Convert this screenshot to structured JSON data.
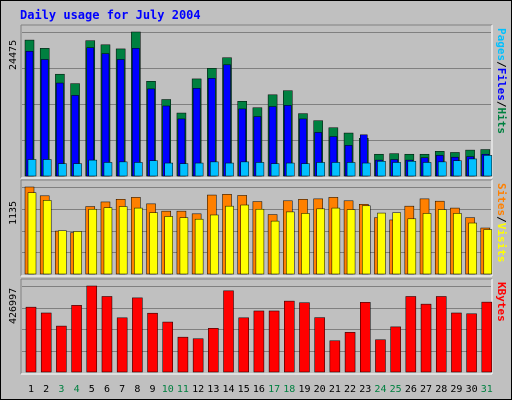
{
  "chart_data": [
    {
      "type": "bar",
      "title": "Daily usage for July 2004",
      "ylabel_parts": [
        {
          "text": "Pages",
          "color": "#00c0ff"
        },
        {
          "text": "/",
          "color": "#000000"
        },
        {
          "text": "Files",
          "color": "#0000ff"
        },
        {
          "text": "/",
          "color": "#000000"
        },
        {
          "text": "Hits",
          "color": "#008040"
        }
      ],
      "ymax_label": "24475",
      "ylim": [
        0,
        24475
      ],
      "categories": [
        "1",
        "2",
        "3",
        "4",
        "5",
        "6",
        "7",
        "8",
        "9",
        "10",
        "11",
        "12",
        "13",
        "14",
        "15",
        "16",
        "17",
        "18",
        "19",
        "20",
        "21",
        "22",
        "23",
        "24",
        "25",
        "26",
        "27",
        "28",
        "29",
        "30",
        "31"
      ],
      "weekend_days": [
        "3",
        "4",
        "10",
        "11",
        "17",
        "18",
        "24",
        "25",
        "31"
      ],
      "series": [
        {
          "name": "Hits",
          "color": "#008040",
          "values": [
            23100,
            21700,
            17300,
            15700,
            23000,
            22300,
            21600,
            24475,
            16100,
            13000,
            10700,
            16500,
            18300,
            20100,
            12700,
            11600,
            13800,
            14500,
            10600,
            9400,
            8200,
            7300,
            6400,
            3700,
            3800,
            3700,
            3700,
            4200,
            4000,
            4400,
            4500
          ]
        },
        {
          "name": "Files",
          "color": "#0000ff",
          "values": [
            21200,
            19800,
            15800,
            13700,
            21800,
            20800,
            19800,
            21700,
            14800,
            11900,
            9700,
            14900,
            16600,
            18900,
            11400,
            10100,
            11800,
            12000,
            9700,
            7400,
            6700,
            5200,
            7000,
            2700,
            2800,
            2700,
            3100,
            3500,
            3200,
            3300,
            3700
          ]
        },
        {
          "name": "Pages",
          "color": "#00c0ff",
          "values": [
            2800,
            2800,
            2100,
            2100,
            2700,
            2300,
            2400,
            2300,
            2600,
            2200,
            2100,
            2200,
            2400,
            2200,
            2400,
            2300,
            2100,
            2200,
            2100,
            2300,
            2300,
            2300,
            2200,
            2500,
            2300,
            2500,
            2300,
            2400,
            2600,
            2900,
            3500
          ]
        }
      ]
    },
    {
      "type": "bar",
      "ylabel_parts": [
        {
          "text": "Sites",
          "color": "#ff8000"
        },
        {
          "text": "/",
          "color": "#000000"
        },
        {
          "text": "Visits",
          "color": "#ffff00"
        }
      ],
      "ymax_label": "1135",
      "ylim": [
        0,
        1135
      ],
      "categories": [
        "1",
        "2",
        "3",
        "4",
        "5",
        "6",
        "7",
        "8",
        "9",
        "10",
        "11",
        "12",
        "13",
        "14",
        "15",
        "16",
        "17",
        "18",
        "19",
        "20",
        "21",
        "22",
        "23",
        "24",
        "25",
        "26",
        "27",
        "28",
        "29",
        "30",
        "31"
      ],
      "series": [
        {
          "name": "Visits",
          "color": "#ffff00",
          "values": [
            1060,
            960,
            565,
            555,
            845,
            865,
            880,
            860,
            800,
            750,
            735,
            715,
            770,
            885,
            900,
            845,
            690,
            810,
            790,
            850,
            860,
            840,
            890,
            795,
            800,
            720,
            790,
            840,
            790,
            665,
            580
          ]
        },
        {
          "name": "Sites",
          "color": "#ff8000",
          "values": [
            1135,
            1020,
            560,
            540,
            880,
            940,
            975,
            1000,
            915,
            820,
            820,
            785,
            1030,
            1040,
            1025,
            945,
            775,
            955,
            975,
            980,
            1000,
            955,
            910,
            735,
            705,
            885,
            980,
            950,
            860,
            735,
            600
          ]
        }
      ]
    },
    {
      "type": "bar",
      "ylabel_parts": [
        {
          "text": "KBytes",
          "color": "#ff0000"
        }
      ],
      "ymax_label": "426997",
      "ylim": [
        0,
        426997
      ],
      "categories": [
        "1",
        "2",
        "3",
        "4",
        "5",
        "6",
        "7",
        "8",
        "9",
        "10",
        "11",
        "12",
        "13",
        "14",
        "15",
        "16",
        "17",
        "18",
        "19",
        "20",
        "21",
        "22",
        "23",
        "24",
        "25",
        "26",
        "27",
        "28",
        "29",
        "30",
        "31"
      ],
      "series": [
        {
          "name": "KBytes",
          "color": "#ff0000",
          "values": [
            322000,
            293000,
            228000,
            331000,
            426997,
            375000,
            269000,
            368000,
            292000,
            248000,
            173000,
            165000,
            217000,
            403000,
            269000,
            303000,
            303000,
            352000,
            344000,
            270000,
            155000,
            197000,
            346000,
            160000,
            224000,
            375000,
            337000,
            375000,
            293000,
            289000,
            347000
          ]
        }
      ]
    }
  ]
}
